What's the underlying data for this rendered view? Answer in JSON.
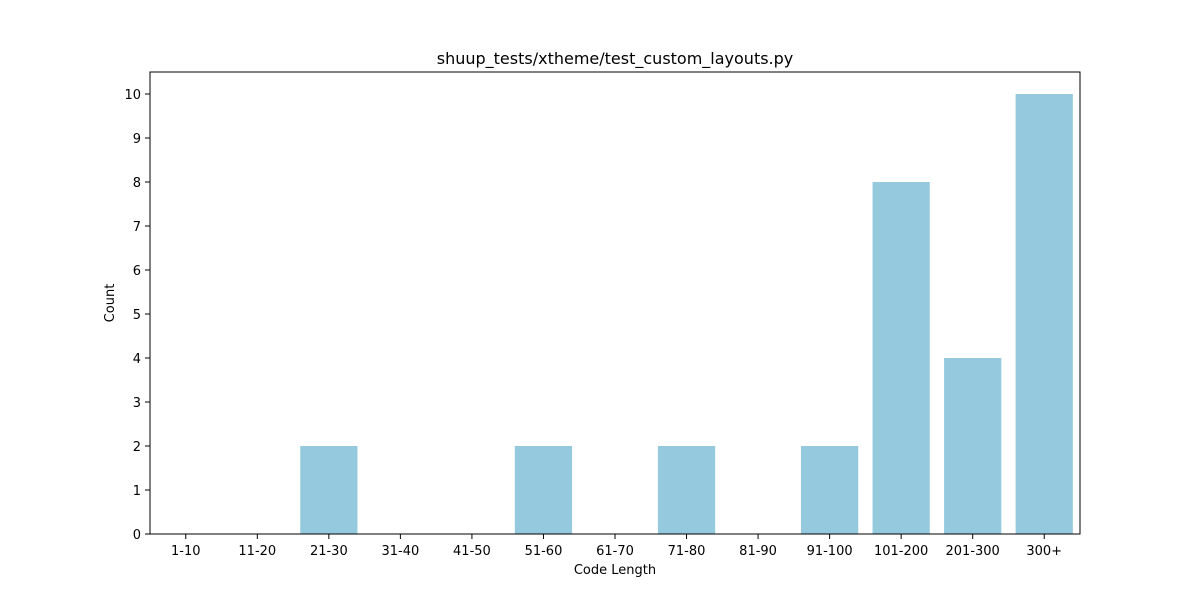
{
  "chart_data": {
    "type": "bar",
    "title": "shuup_tests/xtheme/test_custom_layouts.py",
    "xlabel": "Code Length",
    "ylabel": "Count",
    "categories": [
      "1-10",
      "11-20",
      "21-30",
      "31-40",
      "41-50",
      "51-60",
      "61-70",
      "71-80",
      "81-90",
      "91-100",
      "101-200",
      "201-300",
      "300+"
    ],
    "values": [
      0,
      0,
      2,
      0,
      0,
      2,
      0,
      2,
      0,
      2,
      8,
      4,
      10
    ],
    "ylim": [
      0,
      10.5
    ],
    "yticks": [
      0,
      1,
      2,
      3,
      4,
      5,
      6,
      7,
      8,
      9,
      10
    ],
    "bar_color": "#95c9de",
    "grid": false,
    "legend": "none"
  }
}
